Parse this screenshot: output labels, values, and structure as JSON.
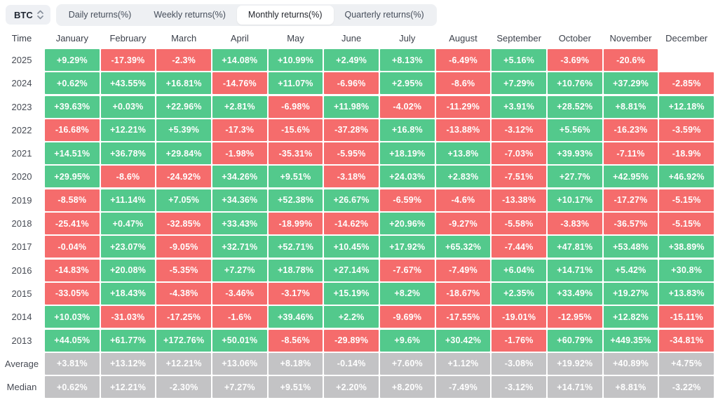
{
  "topbar": {
    "coin": "BTC",
    "tabs": [
      "Daily returns(%)",
      "Weekly returns(%)",
      "Monthly returns(%)",
      "Quarterly returns(%)"
    ],
    "active_tab": "Monthly returns(%)"
  },
  "colors": {
    "positive": "#53c98c",
    "negative": "#f56c6c",
    "neutral": "#c3c3c5"
  },
  "chart_data": {
    "type": "heatmap",
    "title": "BTC Monthly returns(%)",
    "columns": [
      "Time",
      "January",
      "February",
      "March",
      "April",
      "May",
      "June",
      "July",
      "August",
      "September",
      "October",
      "November",
      "December"
    ],
    "rows": [
      {
        "label": "2025",
        "type": "year",
        "values": [
          "+9.29%",
          "-17.39%",
          "-2.3%",
          "+14.08%",
          "+10.99%",
          "+2.49%",
          "+8.13%",
          "-6.49%",
          "+5.16%",
          "-3.69%",
          "-20.6%",
          ""
        ]
      },
      {
        "label": "2024",
        "type": "year",
        "values": [
          "+0.62%",
          "+43.55%",
          "+16.81%",
          "-14.76%",
          "+11.07%",
          "-6.96%",
          "+2.95%",
          "-8.6%",
          "+7.29%",
          "+10.76%",
          "+37.29%",
          "-2.85%"
        ]
      },
      {
        "label": "2023",
        "type": "year",
        "values": [
          "+39.63%",
          "+0.03%",
          "+22.96%",
          "+2.81%",
          "-6.98%",
          "+11.98%",
          "-4.02%",
          "-11.29%",
          "+3.91%",
          "+28.52%",
          "+8.81%",
          "+12.18%"
        ]
      },
      {
        "label": "2022",
        "type": "year",
        "values": [
          "-16.68%",
          "+12.21%",
          "+5.39%",
          "-17.3%",
          "-15.6%",
          "-37.28%",
          "+16.8%",
          "-13.88%",
          "-3.12%",
          "+5.56%",
          "-16.23%",
          "-3.59%"
        ]
      },
      {
        "label": "2021",
        "type": "year",
        "values": [
          "+14.51%",
          "+36.78%",
          "+29.84%",
          "-1.98%",
          "-35.31%",
          "-5.95%",
          "+18.19%",
          "+13.8%",
          "-7.03%",
          "+39.93%",
          "-7.11%",
          "-18.9%"
        ]
      },
      {
        "label": "2020",
        "type": "year",
        "values": [
          "+29.95%",
          "-8.6%",
          "-24.92%",
          "+34.26%",
          "+9.51%",
          "-3.18%",
          "+24.03%",
          "+2.83%",
          "-7.51%",
          "+27.7%",
          "+42.95%",
          "+46.92%"
        ]
      },
      {
        "label": "2019",
        "type": "year",
        "values": [
          "-8.58%",
          "+11.14%",
          "+7.05%",
          "+34.36%",
          "+52.38%",
          "+26.67%",
          "-6.59%",
          "-4.6%",
          "-13.38%",
          "+10.17%",
          "-17.27%",
          "-5.15%"
        ]
      },
      {
        "label": "2018",
        "type": "year",
        "values": [
          "-25.41%",
          "+0.47%",
          "-32.85%",
          "+33.43%",
          "-18.99%",
          "-14.62%",
          "+20.96%",
          "-9.27%",
          "-5.58%",
          "-3.83%",
          "-36.57%",
          "-5.15%"
        ]
      },
      {
        "label": "2017",
        "type": "year",
        "values": [
          "-0.04%",
          "+23.07%",
          "-9.05%",
          "+32.71%",
          "+52.71%",
          "+10.45%",
          "+17.92%",
          "+65.32%",
          "-7.44%",
          "+47.81%",
          "+53.48%",
          "+38.89%"
        ]
      },
      {
        "label": "2016",
        "type": "year",
        "values": [
          "-14.83%",
          "+20.08%",
          "-5.35%",
          "+7.27%",
          "+18.78%",
          "+27.14%",
          "-7.67%",
          "-7.49%",
          "+6.04%",
          "+14.71%",
          "+5.42%",
          "+30.8%"
        ]
      },
      {
        "label": "2015",
        "type": "year",
        "values": [
          "-33.05%",
          "+18.43%",
          "-4.38%",
          "-3.46%",
          "-3.17%",
          "+15.19%",
          "+8.2%",
          "-18.67%",
          "+2.35%",
          "+33.49%",
          "+19.27%",
          "+13.83%"
        ]
      },
      {
        "label": "2014",
        "type": "year",
        "values": [
          "+10.03%",
          "-31.03%",
          "-17.25%",
          "-1.6%",
          "+39.46%",
          "+2.2%",
          "-9.69%",
          "-17.55%",
          "-19.01%",
          "-12.95%",
          "+12.82%",
          "-15.11%"
        ]
      },
      {
        "label": "2013",
        "type": "year",
        "values": [
          "+44.05%",
          "+61.77%",
          "+172.76%",
          "+50.01%",
          "-8.56%",
          "-29.89%",
          "+9.6%",
          "+30.42%",
          "-1.76%",
          "+60.79%",
          "+449.35%",
          "-34.81%"
        ]
      },
      {
        "label": "Average",
        "type": "summary",
        "values": [
          "+3.81%",
          "+13.12%",
          "+12.21%",
          "+13.06%",
          "+8.18%",
          "-0.14%",
          "+7.60%",
          "+1.12%",
          "-3.08%",
          "+19.92%",
          "+40.89%",
          "+4.75%"
        ]
      },
      {
        "label": "Median",
        "type": "summary",
        "values": [
          "+0.62%",
          "+12.21%",
          "-2.30%",
          "+7.27%",
          "+9.51%",
          "+2.20%",
          "+8.20%",
          "-7.49%",
          "-3.12%",
          "+14.71%",
          "+8.81%",
          "-3.22%"
        ]
      }
    ]
  }
}
